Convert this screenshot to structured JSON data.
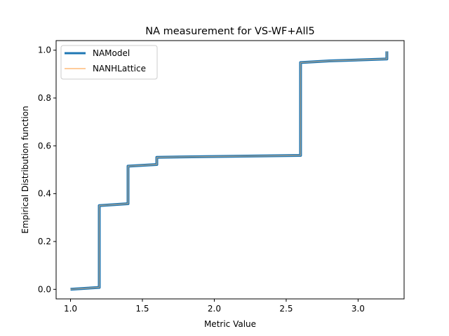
{
  "chart_data": {
    "type": "line",
    "title": "NA measurement for VS-WF+All5",
    "xlabel": "Metric Value",
    "ylabel": "Empirical Distribution function",
    "xlim": [
      0.9,
      3.32
    ],
    "ylim": [
      -0.04,
      1.04
    ],
    "x_ticks": [
      1.0,
      1.5,
      2.0,
      2.5,
      3.0
    ],
    "x_tick_labels": [
      "1.0",
      "1.5",
      "2.0",
      "2.5",
      "3.0"
    ],
    "y_ticks": [
      0.0,
      0.2,
      0.4,
      0.6,
      0.8,
      1.0
    ],
    "y_tick_labels": [
      "0.0",
      "0.2",
      "0.4",
      "0.6",
      "0.8",
      "1.0"
    ],
    "grid": false,
    "legend_position": "top-left",
    "series": [
      {
        "name": "NAModel",
        "color": "#1f77b4",
        "points": [
          [
            1.0,
            0.0
          ],
          [
            1.2,
            0.008
          ],
          [
            1.2,
            0.35
          ],
          [
            1.4,
            0.358
          ],
          [
            1.4,
            0.515
          ],
          [
            1.6,
            0.522
          ],
          [
            1.6,
            0.552
          ],
          [
            2.6,
            0.56
          ],
          [
            2.6,
            0.948
          ],
          [
            2.8,
            0.955
          ],
          [
            3.2,
            0.963
          ],
          [
            3.2,
            0.995
          ]
        ]
      },
      {
        "name": "NANHLattice",
        "color": "#ffbb78",
        "points": [
          [
            1.0,
            0.0
          ],
          [
            1.2,
            0.008
          ],
          [
            1.2,
            0.35
          ],
          [
            1.4,
            0.358
          ],
          [
            1.4,
            0.515
          ],
          [
            1.6,
            0.522
          ],
          [
            1.6,
            0.552
          ],
          [
            2.6,
            0.56
          ],
          [
            2.6,
            0.948
          ],
          [
            2.8,
            0.955
          ],
          [
            3.2,
            0.963
          ],
          [
            3.2,
            0.995
          ]
        ]
      }
    ]
  }
}
